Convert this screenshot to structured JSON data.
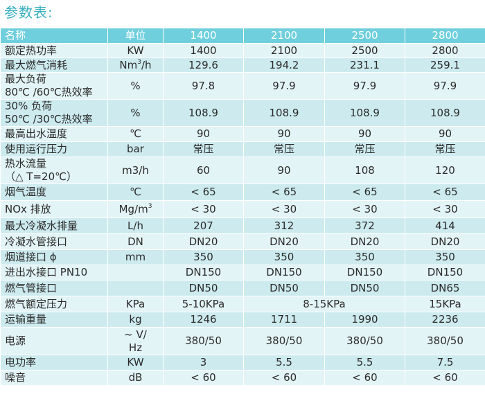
{
  "title": "参数表:",
  "headers": [
    "名称",
    "单位",
    "1400",
    "2100",
    "2500",
    "2800"
  ],
  "rows": [
    {
      "name": [
        "额定热功率"
      ],
      "unit": [
        "KW"
      ],
      "values": [
        "1400",
        "2100",
        "2500",
        "2800"
      ],
      "h": 21
    },
    {
      "name": [
        "最大燃气消耗"
      ],
      "unit": [
        "Nm",
        "3",
        "/h"
      ],
      "values": [
        "129.6",
        "194.2",
        "231.1",
        "259.1"
      ],
      "h": 21
    },
    {
      "name": [
        "最大负荷",
        "80℃ /60℃热效率"
      ],
      "unit": [
        "%"
      ],
      "values": [
        "97.8",
        "97.9",
        "97.9",
        "97.9"
      ],
      "h": 39
    },
    {
      "name": [
        "30% 负荷",
        "50℃ /30℃热效率"
      ],
      "unit": [
        "%"
      ],
      "values": [
        "108.9",
        "108.9",
        "108.9",
        "108.9"
      ],
      "h": 39
    },
    {
      "name": [
        "最高出水温度"
      ],
      "unit": [
        "℃"
      ],
      "values": [
        "90",
        "90",
        "90",
        "90"
      ],
      "h": 22
    },
    {
      "name": [
        "使用运行压力"
      ],
      "unit": [
        "bar"
      ],
      "values": [
        "常压",
        "常压",
        "常压",
        "常压"
      ],
      "h": 22
    },
    {
      "name": [
        "热水流量",
        "（△ T=20℃）"
      ],
      "unit": [
        "m3/h"
      ],
      "values": [
        "60",
        "90",
        "108",
        "120"
      ],
      "h": 39
    },
    {
      "name": [
        "烟气温度"
      ],
      "unit": [
        "℃"
      ],
      "values": [
        "< 65",
        "< 65",
        "< 65",
        "< 65"
      ],
      "h": 24
    },
    {
      "name": [
        "NOx 排放"
      ],
      "unit": [
        "Mg/m",
        "3",
        ""
      ],
      "values": [
        "< 30",
        "< 30",
        "< 30",
        "< 30"
      ],
      "h": 25
    },
    {
      "name": [
        "最大冷凝水排量"
      ],
      "unit": [
        "L/h"
      ],
      "values": [
        "207",
        "312",
        "372",
        "414"
      ],
      "h": 23
    },
    {
      "name": [
        "冷凝水管接口"
      ],
      "unit": [
        "DN"
      ],
      "values": [
        "DN20",
        "DN20",
        "DN20",
        "DN20"
      ],
      "h": 23
    },
    {
      "name": [
        "烟道接口 ϕ"
      ],
      "unit": [
        "mm"
      ],
      "values": [
        "350",
        "350",
        "350",
        "350"
      ],
      "h": 22
    },
    {
      "name": [
        "进出水接口 PN10"
      ],
      "unit": [
        ""
      ],
      "values": [
        "DN150",
        "DN150",
        "DN150",
        "DN150"
      ],
      "h": 22
    },
    {
      "name": [
        "燃气管接口"
      ],
      "unit": [
        ""
      ],
      "values": [
        "DN50",
        "DN50",
        "DN50",
        "DN65"
      ],
      "h": 23
    },
    {
      "name": [
        "燃气额定压力"
      ],
      "unit": [
        "KPa"
      ],
      "values": [
        "5-10KPa",
        "8-15KPa",
        "15KPa"
      ],
      "spans": [
        1,
        2,
        1
      ],
      "h": 23
    },
    {
      "name": [
        "运输重量"
      ],
      "unit": [
        "kg"
      ],
      "values": [
        "1246",
        "1711",
        "1990",
        "2236"
      ],
      "h": 22
    },
    {
      "name": [
        "电源"
      ],
      "unit": [
        "~ V/",
        "Hz"
      ],
      "unit_lines": true,
      "values": [
        "380/50",
        "380/50",
        "380/50",
        "380/50"
      ],
      "h": 40
    },
    {
      "name": [
        "电功率"
      ],
      "unit": [
        "KW"
      ],
      "values": [
        "3",
        "5.5",
        "5.5",
        "7.5"
      ],
      "h": 22
    },
    {
      "name": [
        "噪音"
      ],
      "unit": [
        "dB"
      ],
      "values": [
        "< 60",
        "< 60",
        "< 60",
        "< 60"
      ],
      "h": 22
    }
  ]
}
